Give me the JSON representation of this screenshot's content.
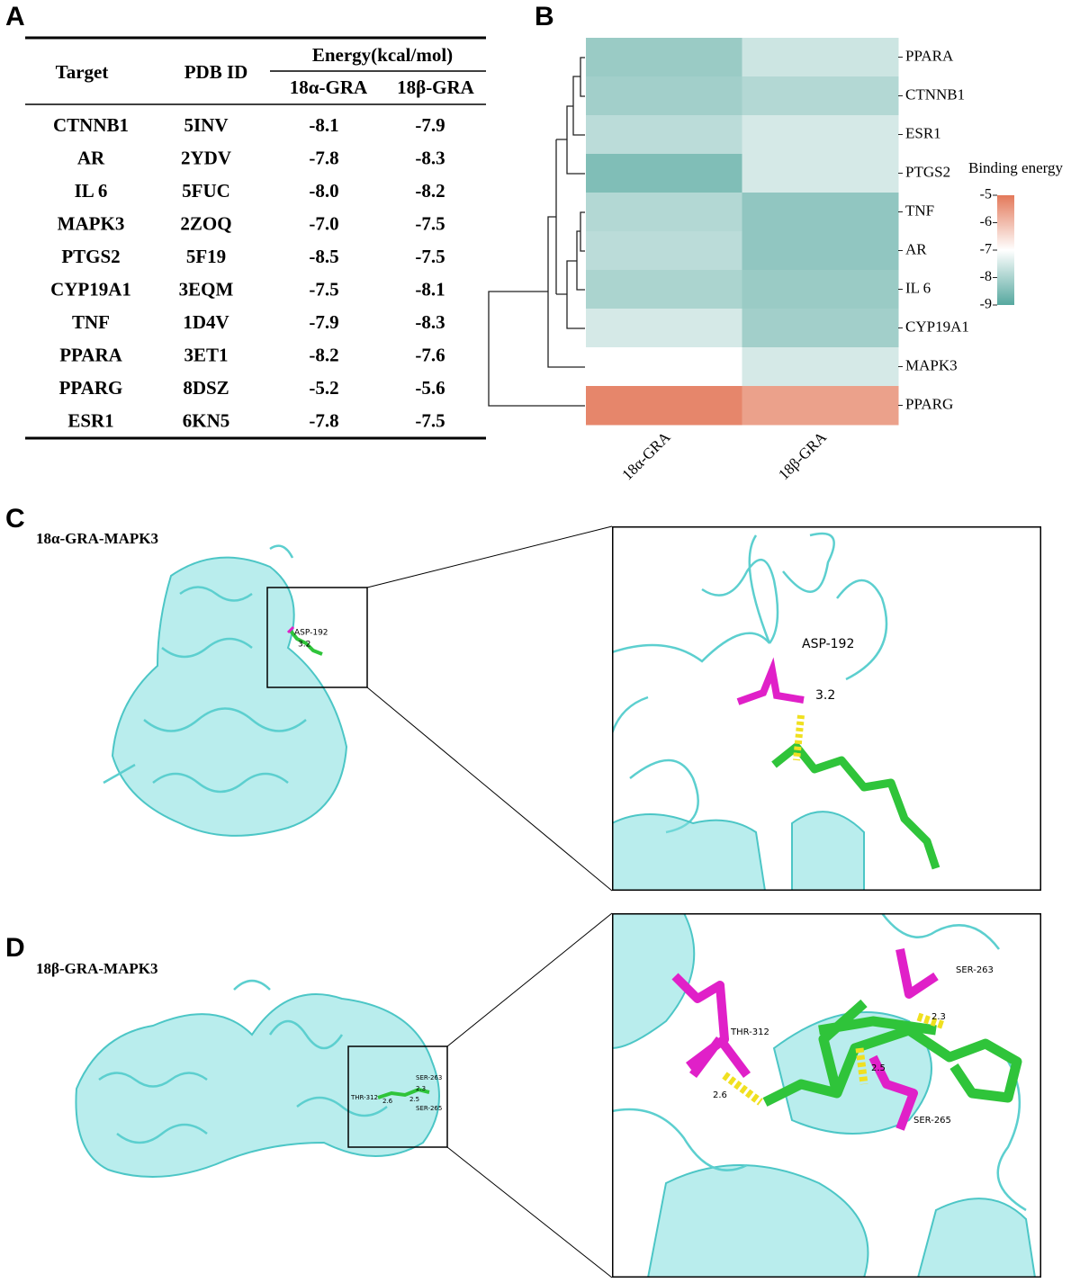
{
  "panel_labels": [
    "A",
    "B",
    "C",
    "D"
  ],
  "table": {
    "header": {
      "target": "Target",
      "pdb": "PDB ID",
      "energy": "Energy(kcal/mol)",
      "col1": "18α-GRA",
      "col2": "18β-GRA"
    },
    "rows": [
      [
        "CTNNB1",
        "5INV",
        "-8.1",
        "-7.9"
      ],
      [
        "AR",
        "2YDV",
        "-7.8",
        "-8.3"
      ],
      [
        "IL 6",
        "5FUC",
        "-8.0",
        "-8.2"
      ],
      [
        "MAPK3",
        "2ZOQ",
        "-7.0",
        "-7.5"
      ],
      [
        "PTGS2",
        "5F19",
        "-8.5",
        "-7.5"
      ],
      [
        "CYP19A1",
        "3EQM",
        "-7.5",
        "-8.1"
      ],
      [
        "TNF",
        "1D4V",
        "-7.9",
        "-8.3"
      ],
      [
        "PPARA",
        "3ET1",
        "-8.2",
        "-7.6"
      ],
      [
        "PPARG",
        "8DSZ",
        "-5.2",
        "-5.6"
      ],
      [
        "ESR1",
        "6KN5",
        "-7.8",
        "-7.5"
      ]
    ]
  },
  "chart_data": {
    "type": "heatmap",
    "categories": [
      "PPARA",
      "CTNNB1",
      "ESR1",
      "PTGS2",
      "TNF",
      "AR",
      "IL 6",
      "CYP19A1",
      "MAPK3",
      "PPARG"
    ],
    "series": [
      {
        "name": "18α-GRA",
        "values": [
          -8.2,
          -8.1,
          -7.8,
          -8.5,
          -7.9,
          -7.8,
          -8.0,
          -7.5,
          -7.0,
          -5.2
        ]
      },
      {
        "name": "18β-GRA",
        "values": [
          -7.6,
          -7.9,
          -7.5,
          -7.5,
          -8.3,
          -8.3,
          -8.2,
          -8.1,
          -7.5,
          -5.6
        ]
      }
    ],
    "colorbar": {
      "title": "Binding energy",
      "lim": [
        -9,
        -5
      ],
      "ticks": [
        -5,
        -6,
        -7,
        -8,
        -9
      ],
      "colors": [
        "#56a89f",
        "#ffffff",
        "#e3795a"
      ]
    }
  },
  "panel_c": {
    "title": "18α-GRA-MAPK3",
    "residue": "ASP-192",
    "distance": "3.2"
  },
  "panel_d": {
    "title": "18β-GRA-MAPK3",
    "residues": [
      "THR-312",
      "SER-263",
      "SER-265"
    ],
    "distances": [
      "2.6",
      "2.3",
      "2.5"
    ]
  }
}
